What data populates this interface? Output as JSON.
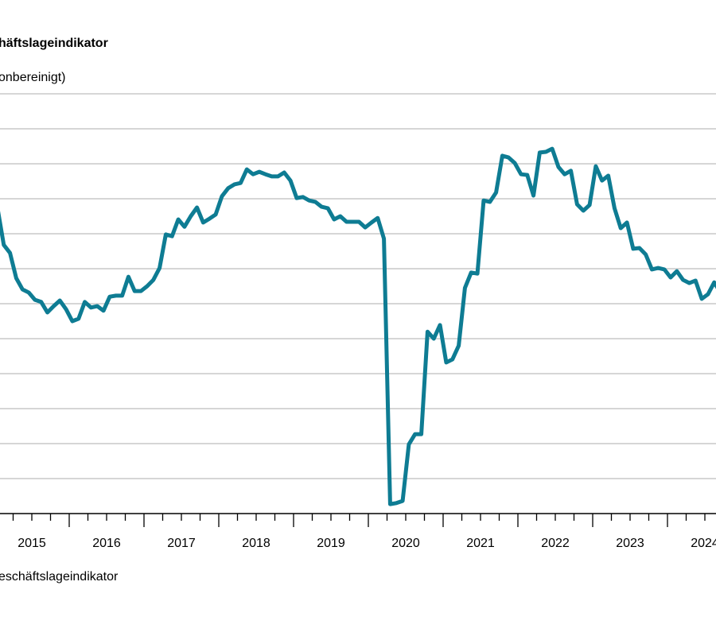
{
  "chart_data": {
    "type": "line",
    "title": "häftslageindikator",
    "subtitle": "onbereinigt)",
    "legend": [
      "eschäftslageindikator"
    ],
    "legend_placement": "bottom-left",
    "x_tick_labels": [
      "2015",
      "2016",
      "2017",
      "2018",
      "2019",
      "2020",
      "2021",
      "2022",
      "2023",
      "2024"
    ],
    "x_start": 2015,
    "ylim": [
      0,
      120
    ],
    "y_grid_step": 10,
    "grid": true,
    "color": "#0e7c93",
    "series": [
      {
        "name": "eschäftslageindikator",
        "frequency": "monthly",
        "values": [
          87.3,
          76.8,
          74.5,
          67.3,
          64.1,
          63.2,
          61.1,
          60.5,
          57.5,
          59.3,
          60.9,
          58.4,
          55.0,
          55.7,
          60.5,
          58.9,
          59.3,
          58.0,
          62.0,
          62.3,
          62.3,
          67.7,
          63.6,
          63.6,
          65.0,
          66.8,
          70.2,
          79.8,
          79.3,
          84.1,
          82.0,
          85.0,
          87.5,
          83.2,
          84.3,
          85.5,
          90.7,
          93.0,
          94.1,
          94.5,
          98.4,
          97.0,
          97.7,
          97.0,
          96.4,
          96.4,
          97.5,
          95.2,
          90.2,
          90.5,
          89.5,
          89.1,
          87.7,
          87.3,
          84.1,
          85.0,
          83.4,
          83.4,
          83.4,
          81.8,
          83.2,
          84.5,
          78.6,
          2.7,
          3.0,
          3.6,
          19.8,
          22.7,
          22.7,
          52.0,
          50.0,
          53.9,
          43.2,
          44.1,
          48.0,
          64.5,
          68.9,
          68.6,
          89.5,
          89.1,
          91.8,
          102.3,
          101.8,
          100.2,
          97.0,
          96.8,
          90.9,
          103.2,
          103.4,
          104.3,
          99.1,
          97.0,
          98.0,
          88.4,
          86.6,
          88.2,
          99.3,
          95.2,
          96.6,
          87.3,
          81.6,
          83.2,
          75.7,
          75.9,
          74.1,
          69.8,
          70.2,
          69.8,
          67.5,
          69.3,
          66.8,
          65.9,
          66.6,
          61.4,
          62.7,
          66.1,
          63.2
        ]
      }
    ]
  }
}
